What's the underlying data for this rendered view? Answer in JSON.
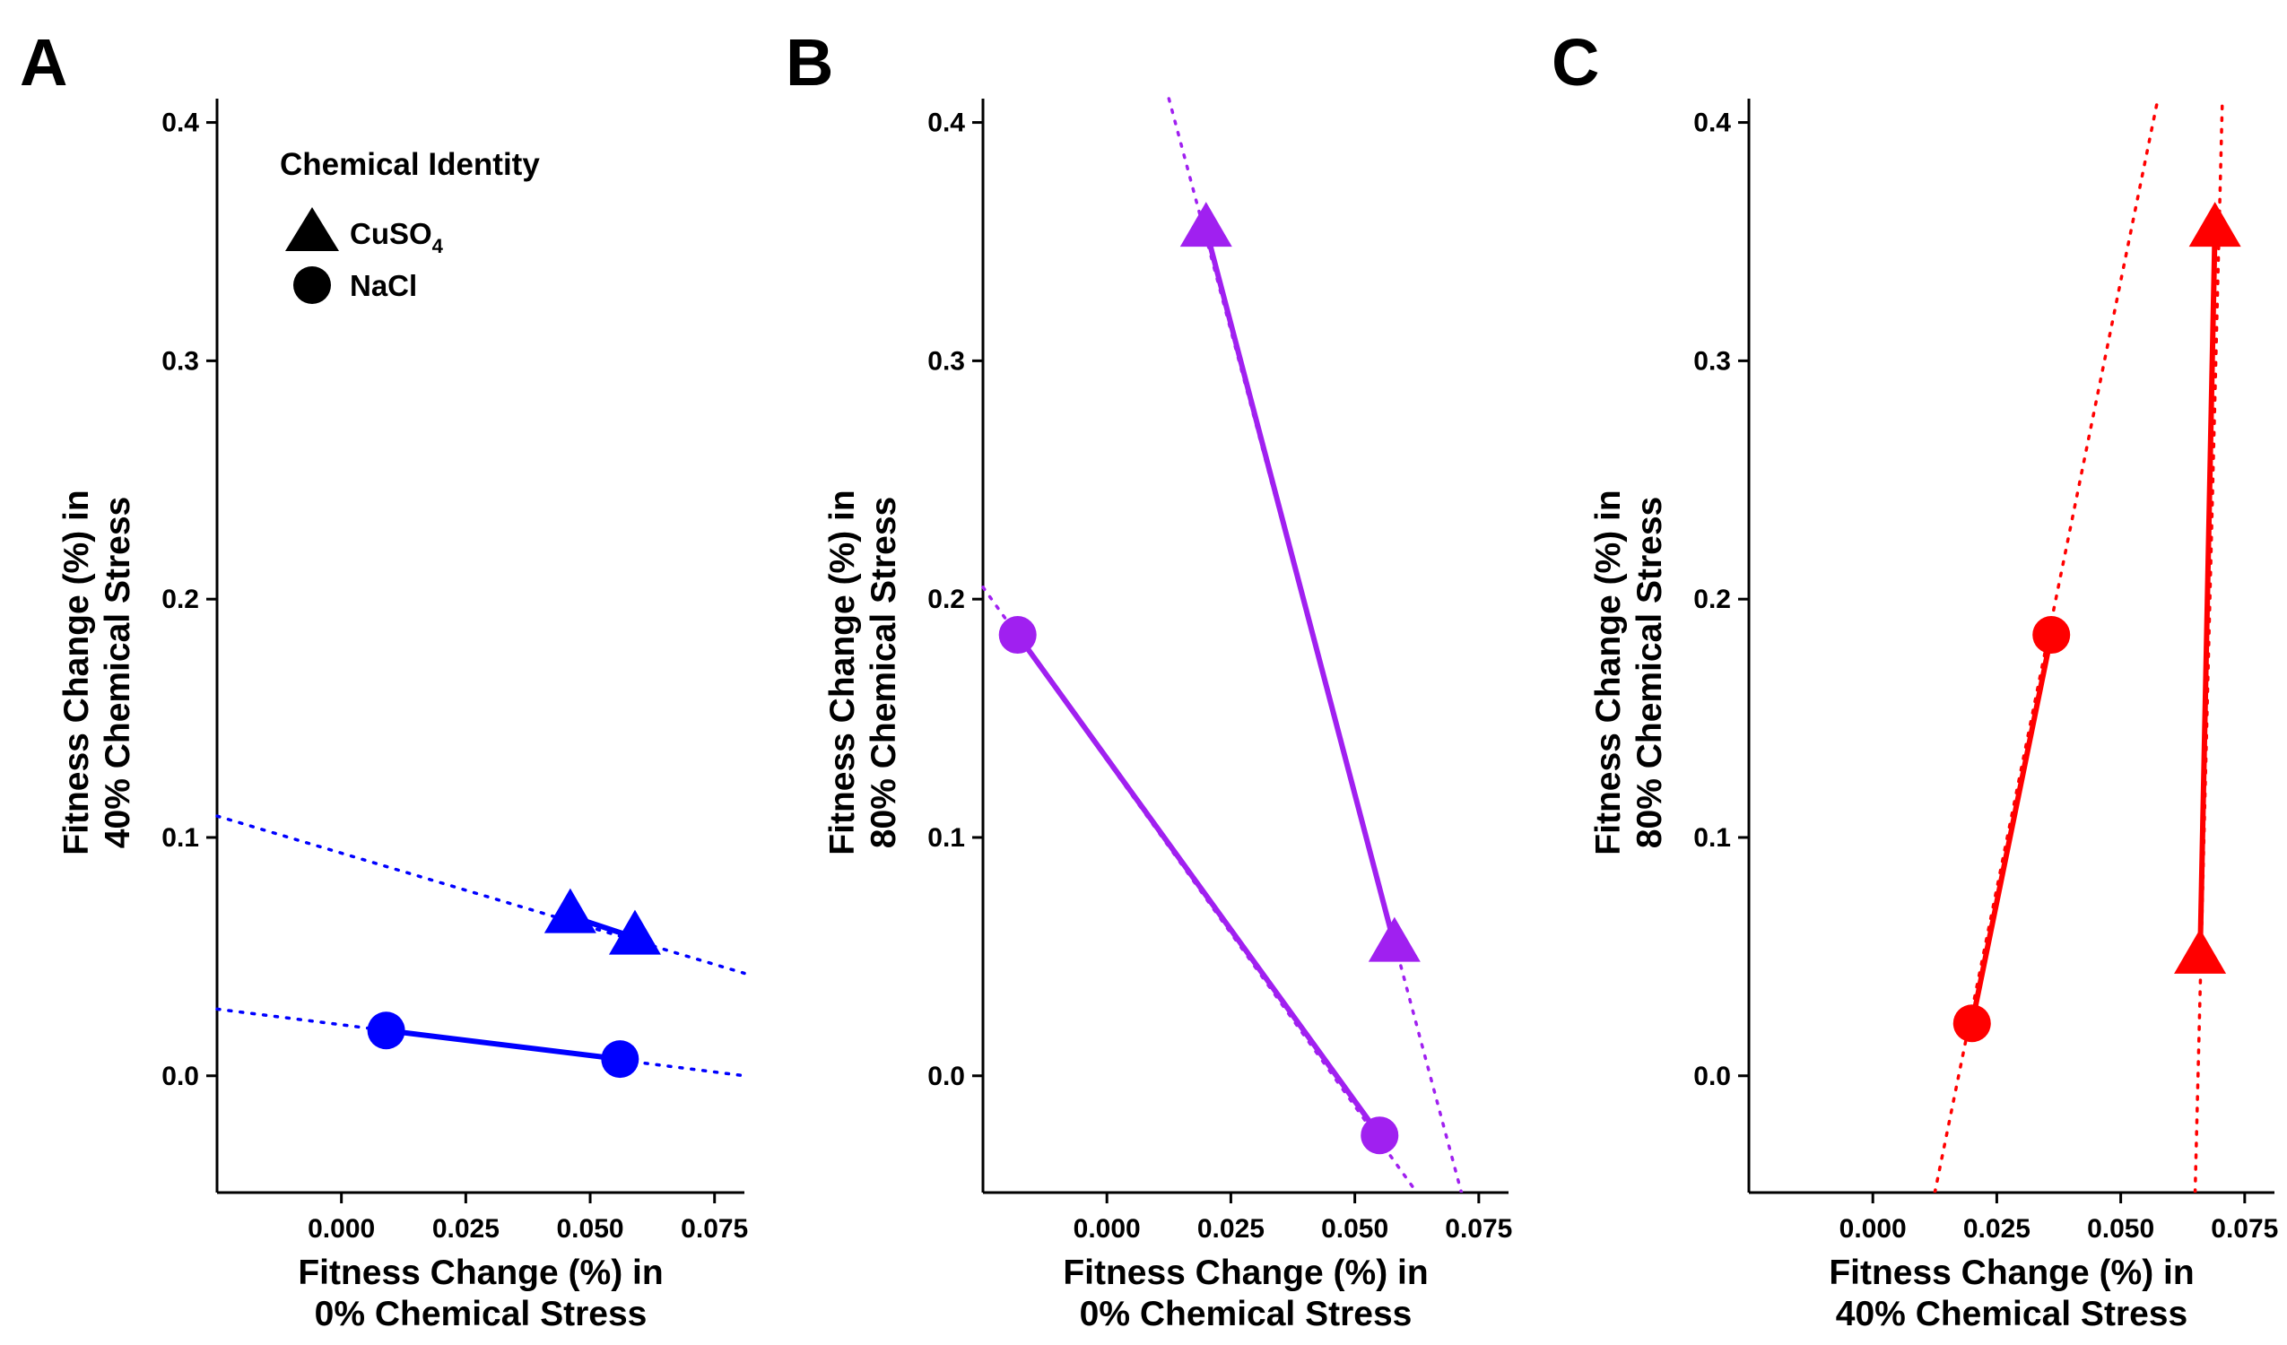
{
  "chart_data": [
    {
      "type": "line",
      "panel_label": "A",
      "xlabel": [
        "Fitness Change (%) in",
        "0% Chemical Stress"
      ],
      "ylabel": [
        "Fitness Change (%) in",
        "40% Chemical Stress"
      ],
      "xlim": [
        -0.025,
        0.081
      ],
      "ylim": [
        -0.049,
        0.41
      ],
      "xticks": [
        0.0,
        0.025,
        0.05,
        0.075
      ],
      "xtick_labels": [
        "0.000",
        "0.025",
        "0.050",
        "0.075"
      ],
      "yticks": [
        0.0,
        0.1,
        0.2,
        0.3,
        0.4
      ],
      "ytick_labels": [
        "0.0",
        "0.1",
        "0.2",
        "0.3",
        "0.4"
      ],
      "color": "#0000ff",
      "grid": false,
      "legend": {
        "title": "Chemical Identity",
        "position": "top-left",
        "entries": [
          {
            "label": "CuSO",
            "subscript": "4",
            "shape": "triangle"
          },
          {
            "label": "NaCl",
            "subscript": "",
            "shape": "circle"
          }
        ]
      },
      "series": [
        {
          "chemical": "CuSO4",
          "shape": "triangle",
          "x": [
            0.046,
            0.059
          ],
          "y": [
            0.067,
            0.058
          ],
          "trend": {
            "x": [
              -0.025,
              0.081
            ],
            "y": [
              0.109,
              0.043
            ]
          }
        },
        {
          "chemical": "NaCl",
          "shape": "circle",
          "x": [
            0.009,
            0.056
          ],
          "y": [
            0.019,
            0.007
          ],
          "trend": {
            "x": [
              -0.025,
              0.081
            ],
            "y": [
              0.028,
              0.0
            ]
          }
        }
      ]
    },
    {
      "type": "line",
      "panel_label": "B",
      "xlabel": [
        "Fitness Change (%) in",
        "0% Chemical Stress"
      ],
      "ylabel": [
        "Fitness Change (%) in",
        "80% Chemical Stress"
      ],
      "xlim": [
        -0.025,
        0.081
      ],
      "ylim": [
        -0.049,
        0.41
      ],
      "xticks": [
        0.0,
        0.025,
        0.05,
        0.075
      ],
      "xtick_labels": [
        "0.000",
        "0.025",
        "0.050",
        "0.075"
      ],
      "yticks": [
        0.0,
        0.1,
        0.2,
        0.3,
        0.4
      ],
      "ytick_labels": [
        "0.0",
        "0.1",
        "0.2",
        "0.3",
        "0.4"
      ],
      "color": "#a020f0",
      "grid": false,
      "series": [
        {
          "chemical": "CuSO4",
          "shape": "triangle",
          "x": [
            0.02,
            0.058
          ],
          "y": [
            0.355,
            0.055
          ],
          "trend": {
            "x": [
              0.0125,
              0.0715
            ],
            "y": [
              0.41,
              -0.049
            ]
          }
        },
        {
          "chemical": "NaCl",
          "shape": "circle",
          "x": [
            -0.018,
            0.055
          ],
          "y": [
            0.185,
            -0.025
          ],
          "trend": {
            "x": [
              -0.025,
              0.0625
            ],
            "y": [
              0.205,
              -0.049
            ]
          }
        }
      ]
    },
    {
      "type": "line",
      "panel_label": "C",
      "xlabel": [
        "Fitness Change (%) in",
        "40% Chemical Stress"
      ],
      "ylabel": [
        "Fitness Change (%) in",
        "80% Chemical Stress"
      ],
      "xlim": [
        -0.025,
        0.081
      ],
      "ylim": [
        -0.049,
        0.41
      ],
      "xticks": [
        0.0,
        0.025,
        0.05,
        0.075
      ],
      "xtick_labels": [
        "0.000",
        "0.025",
        "0.050",
        "0.075"
      ],
      "yticks": [
        0.0,
        0.1,
        0.2,
        0.3,
        0.4
      ],
      "ytick_labels": [
        "0.0",
        "0.1",
        "0.2",
        "0.3",
        "0.4"
      ],
      "color": "#ff0000",
      "grid": false,
      "series": [
        {
          "chemical": "CuSO4",
          "shape": "triangle",
          "x": [
            0.066,
            0.069
          ],
          "y": [
            0.05,
            0.355
          ],
          "trend": {
            "x": [
              0.065,
              0.0705
            ],
            "y": [
              -0.049,
              0.41
            ]
          }
        },
        {
          "chemical": "NaCl",
          "shape": "circle",
          "x": [
            0.02,
            0.036
          ],
          "y": [
            0.022,
            0.185
          ],
          "trend": {
            "x": [
              0.0125,
              0.0575
            ],
            "y": [
              -0.049,
              0.41
            ]
          }
        }
      ]
    }
  ]
}
